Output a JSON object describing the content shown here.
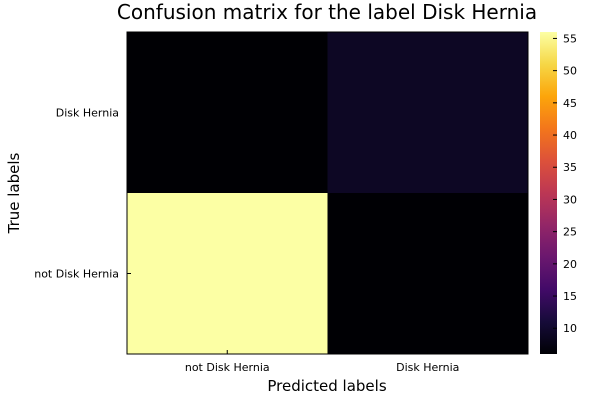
{
  "chart_data": {
    "type": "heatmap",
    "title": "Confusion matrix for the label Disk Hernia",
    "xlabel": "Predicted labels",
    "ylabel": "True labels",
    "x_categories": [
      "not Disk Hernia",
      "Disk Hernia"
    ],
    "y_categories": [
      "Disk Hernia",
      "not Disk Hernia"
    ],
    "cells": [
      {
        "true": "Disk Hernia",
        "predicted": "not Disk Hernia",
        "value": 6
      },
      {
        "true": "Disk Hernia",
        "predicted": "Disk Hernia",
        "value": 9
      },
      {
        "true": "not Disk Hernia",
        "predicted": "not Disk Hernia",
        "value": 56
      },
      {
        "true": "not Disk Hernia",
        "predicted": "Disk Hernia",
        "value": 6
      }
    ],
    "colorbar": {
      "colormap": "inferno",
      "range": [
        6,
        56
      ],
      "ticks": [
        10,
        15,
        20,
        25,
        30,
        35,
        40,
        45,
        50,
        55
      ],
      "tick_labels": [
        "10",
        "15",
        "20",
        "25",
        "30",
        "35",
        "40",
        "45",
        "50",
        "55"
      ]
    },
    "grid": false,
    "legend": "colorbar-right"
  }
}
